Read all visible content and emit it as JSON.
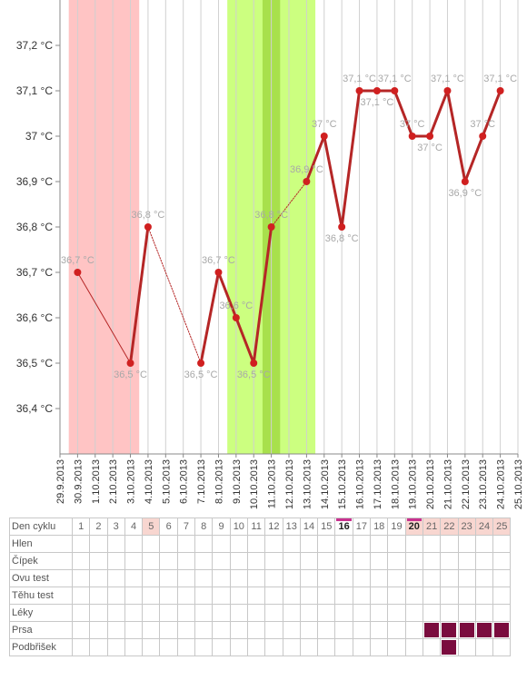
{
  "chart_data": {
    "type": "line",
    "ylim": [
      36.3,
      37.3
    ],
    "y_ticks": [
      "36,4 °C",
      "36,5 °C",
      "36,6 °C",
      "36,7 °C",
      "36,8 °C",
      "36,9 °C",
      "37 °C",
      "37,1 °C",
      "37,2 °C"
    ],
    "y_tick_values": [
      36.4,
      36.5,
      36.6,
      36.7,
      36.8,
      36.9,
      37.0,
      37.1,
      37.2
    ],
    "x_dates": [
      "29.9.2013",
      "30.9.2013",
      "1.10.2013",
      "2.10.2013",
      "3.10.2013",
      "4.10.2013",
      "5.10.2013",
      "6.10.2013",
      "7.10.2013",
      "8.10.2013",
      "9.10.2013",
      "10.10.2013",
      "11.10.2013",
      "12.10.2013",
      "13.10.2013",
      "14.10.2013",
      "15.10.2013",
      "16.10.2013",
      "17.10.2013",
      "18.10.2013",
      "19.10.2013",
      "20.10.2013",
      "21.10.2013",
      "22.10.2013",
      "23.10.2013",
      "24.10.2013",
      "25.10.2013"
    ],
    "points": [
      {
        "date": "30.9.2013",
        "y": 36.7,
        "label": "36,7 °C",
        "pos": "above"
      },
      {
        "date": "3.10.2013",
        "y": 36.5,
        "label": "36,5 °C",
        "pos": "below"
      },
      {
        "date": "4.10.2013",
        "y": 36.8,
        "label": "36,8 °C",
        "pos": "above"
      },
      {
        "date": "7.10.2013",
        "y": 36.5,
        "label": "36,5 °C",
        "pos": "below"
      },
      {
        "date": "8.10.2013",
        "y": 36.7,
        "label": "36,7 °C",
        "pos": "above"
      },
      {
        "date": "9.10.2013",
        "y": 36.6,
        "label": "36,6 °C",
        "pos": "above"
      },
      {
        "date": "10.10.2013",
        "y": 36.5,
        "label": "36,5 °C",
        "pos": "below"
      },
      {
        "date": "11.10.2013",
        "y": 36.8,
        "label": "36,8 °C",
        "pos": "above"
      },
      {
        "date": "13.10.2013",
        "y": 36.9,
        "label": "36,9 °C",
        "pos": "above"
      },
      {
        "date": "14.10.2013",
        "y": 37.0,
        "label": "37 °C",
        "pos": "above"
      },
      {
        "date": "15.10.2013",
        "y": 36.8,
        "label": "36,8 °C",
        "pos": "below"
      },
      {
        "date": "16.10.2013",
        "y": 37.1,
        "label": "37,1 °C",
        "pos": "above"
      },
      {
        "date": "17.10.2013",
        "y": 37.1,
        "label": "37,1 °C",
        "pos": "below"
      },
      {
        "date": "18.10.2013",
        "y": 37.1,
        "label": "37,1 °C",
        "pos": "above"
      },
      {
        "date": "19.10.2013",
        "y": 37.0,
        "label": "37 °C",
        "pos": "above"
      },
      {
        "date": "20.10.2013",
        "y": 37.0,
        "label": "37 °C",
        "pos": "below"
      },
      {
        "date": "21.10.2013",
        "y": 37.1,
        "label": "37,1 °C",
        "pos": "above"
      },
      {
        "date": "22.10.2013",
        "y": 36.9,
        "label": "36,9 °C",
        "pos": "below"
      },
      {
        "date": "23.10.2013",
        "y": 37.0,
        "label": "37 °C",
        "pos": "above"
      },
      {
        "date": "24.10.2013",
        "y": 37.1,
        "label": "37,1 °C",
        "pos": "above"
      }
    ],
    "segments": [
      {
        "from": 0,
        "to": 1,
        "style": "thin"
      },
      {
        "from": 1,
        "to": 2,
        "style": "thick"
      },
      {
        "from": 2,
        "to": 3,
        "style": "dotted"
      },
      {
        "from": 3,
        "to": 4,
        "style": "thick"
      },
      {
        "from": 4,
        "to": 5,
        "style": "thick"
      },
      {
        "from": 5,
        "to": 6,
        "style": "thick"
      },
      {
        "from": 6,
        "to": 7,
        "style": "thick"
      },
      {
        "from": 7,
        "to": 8,
        "style": "dotted"
      },
      {
        "from": 8,
        "to": 9,
        "style": "thick"
      },
      {
        "from": 9,
        "to": 10,
        "style": "thick"
      },
      {
        "from": 10,
        "to": 11,
        "style": "thick"
      },
      {
        "from": 11,
        "to": 12,
        "style": "thick"
      },
      {
        "from": 12,
        "to": 13,
        "style": "thick"
      },
      {
        "from": 13,
        "to": 14,
        "style": "thick"
      },
      {
        "from": 14,
        "to": 15,
        "style": "thick"
      },
      {
        "from": 15,
        "to": 16,
        "style": "thick"
      },
      {
        "from": 16,
        "to": 17,
        "style": "thick"
      },
      {
        "from": 17,
        "to": 18,
        "style": "thick"
      },
      {
        "from": 18,
        "to": 19,
        "style": "thick"
      }
    ],
    "bands": [
      {
        "from": "29.9.2013",
        "to": "3.10.2013",
        "kind": "menstruation"
      },
      {
        "from": "8.10.2013",
        "to": "13.10.2013",
        "kind": "fertile"
      },
      {
        "from": "10.10.2013",
        "to": "11.10.2013",
        "kind": "ovulation"
      }
    ],
    "colors": {
      "line": "#b52626",
      "point": "#d02020",
      "menstruation": "#ffc4c4",
      "fertile": "#ccff80",
      "ovulation": "#a8e04c",
      "grid": "#d0d0d0",
      "label": "#a8a8a8"
    }
  },
  "cycle_table": {
    "header_label": "Den cyklu",
    "days": [
      "1",
      "2",
      "3",
      "4",
      "5",
      "6",
      "7",
      "8",
      "9",
      "10",
      "11",
      "12",
      "13",
      "14",
      "15",
      "16",
      "17",
      "18",
      "19",
      "20",
      "21",
      "22",
      "23",
      "24",
      "25"
    ],
    "pink_days": [
      5,
      20,
      21,
      22,
      23,
      24,
      25
    ],
    "marked_days": [
      16,
      20
    ],
    "marker_color": "#c8318f",
    "rows": [
      {
        "label": "Hlen",
        "filled": []
      },
      {
        "label": "Čípek",
        "filled": []
      },
      {
        "label": "Ovu test",
        "filled": []
      },
      {
        "label": "Těhu test",
        "filled": []
      },
      {
        "label": "Léky",
        "filled": []
      },
      {
        "label": "Prsa",
        "filled": [
          21,
          22,
          23,
          24,
          25
        ]
      },
      {
        "label": "Podbřišek",
        "filled": [
          22
        ]
      }
    ],
    "symptom_color": "#7a0c3e"
  }
}
